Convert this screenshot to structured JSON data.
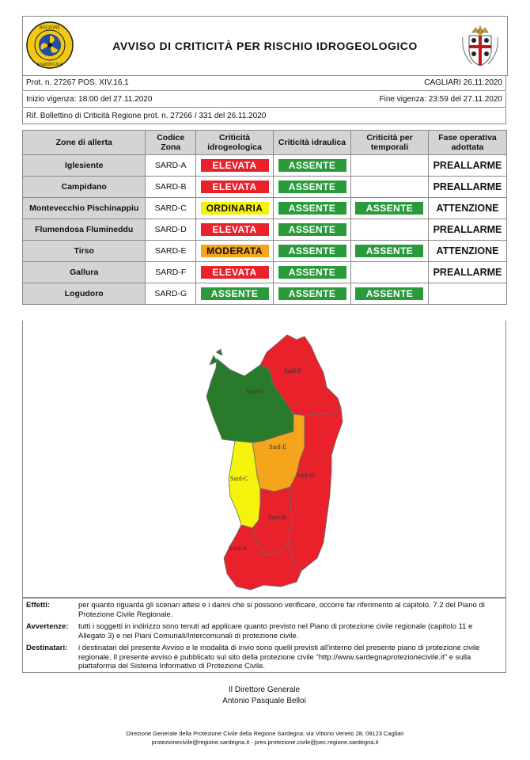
{
  "header": {
    "title": "AVVISO DI CRITICITÀ PER RISCHIO IDROGEOLOGICO",
    "logo_left_text": "REGIONE SARDEGNA",
    "logo_right": "sardegna-coat-of-arms"
  },
  "meta": {
    "prot": "Prot. n. 27267 POS. XIV.16.1",
    "city_date": "CAGLIARI 26.11.2020",
    "start": "Inizio vigenza: 18:00 del 27.11.2020",
    "end": "Fine vigenza: 23:59 del 27.11.2020",
    "rif": "Rif. Bollettino di Criticità Regione prot. n. 27266 / 331 del 26.11.2020"
  },
  "table": {
    "headers": {
      "zone": "Zone di allerta",
      "code": "Codice Zona",
      "idro": "Criticità idrogeologica",
      "idraulica": "Criticità idraulica",
      "temporali": "Criticità per temporali",
      "fase": "Fase operativa adottata"
    },
    "rows": [
      {
        "zone": "Iglesiente",
        "code": "SARD-A",
        "idro": "ELEVATA",
        "idraulica": "ASSENTE",
        "temporali": "",
        "fase": "PREALLARME"
      },
      {
        "zone": "Campidano",
        "code": "SARD-B",
        "idro": "ELEVATA",
        "idraulica": "ASSENTE",
        "temporali": "",
        "fase": "PREALLARME"
      },
      {
        "zone": "Montevecchio Pischinappiu",
        "code": "SARD-C",
        "idro": "ORDINARIA",
        "idraulica": "ASSENTE",
        "temporali": "ASSENTE",
        "fase": "ATTENZIONE"
      },
      {
        "zone": "Flumendosa Flumineddu",
        "code": "SARD-D",
        "idro": "ELEVATA",
        "idraulica": "ASSENTE",
        "temporali": "",
        "fase": "PREALLARME"
      },
      {
        "zone": "Tirso",
        "code": "SARD-E",
        "idro": "MODERATA",
        "idraulica": "ASSENTE",
        "temporali": "ASSENTE",
        "fase": "ATTENZIONE"
      },
      {
        "zone": "Gallura",
        "code": "SARD-F",
        "idro": "ELEVATA",
        "idraulica": "ASSENTE",
        "temporali": "",
        "fase": "PREALLARME"
      },
      {
        "zone": "Logudoro",
        "code": "SARD-G",
        "idro": "ASSENTE",
        "idraulica": "ASSENTE",
        "temporali": "ASSENTE",
        "fase": ""
      }
    ]
  },
  "colors": {
    "ELEVATA": "#e8212a",
    "ASSENTE": "#2a9a3b",
    "ORDINARIA": "#f5f20c",
    "MODERATA": "#f4a51c"
  },
  "map": {
    "labels": {
      "A": "Sard-A",
      "B": "Sard-B",
      "C": "Sard-C",
      "D": "Sard-D",
      "E": "Sard-E",
      "F": "Sard-F",
      "G": "Sard-G"
    }
  },
  "notes": {
    "effetti_label": "Effetti:",
    "effetti": "per quanto riguarda gli scenari attesi e i danni che si possono verificare, occorre far riferimento al capitolo. 7.2 del Piano di Protezione Civile Regionale.",
    "avvertenze_label": "Avvertenze:",
    "avvertenze": "tutti i soggetti in indirizzo sono tenuti ad applicare quanto previsto nel Piano di protezione civile regionale (capitolo 11 e Allegato 3) e nei Piani Comunali/Intercomunali di protezione civile.",
    "destinatari_label": "Destinatari:",
    "destinatari": "i destinatari del presente Avviso e le modalità di invio sono quelli previsti all'interno del presente piano di protezione civile regionale. Il presente avviso è pubblicato sul sito della protezione civile \"http://www.sardegnaprotezionecivile.it\" e sulla piattaforma del Sistema Informativo di Protezione Civile."
  },
  "signature": {
    "role": "Il Direttore Generale",
    "name": "Antonio Pasquale Belloi"
  },
  "footer": {
    "line1": "Direzione Generale della Protezione Civile della Regione Sardegna: via Vittorio Veneto 28, 09123 Cagliari",
    "line2": "protezionecivile@regione.sardegna.it - pres.protezione.civile@pec.regione.sardegna.it"
  }
}
